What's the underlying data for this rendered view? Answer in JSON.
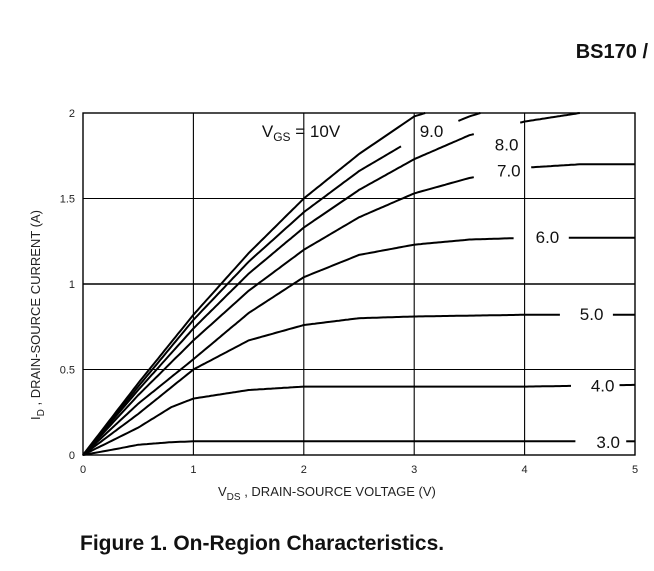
{
  "header": {
    "part_number": "BS170 /"
  },
  "caption": "Figure 1. On-Region Characteristics.",
  "chart_data": {
    "type": "line",
    "xlabel_main": "V",
    "xlabel_sub": "DS",
    "xlabel_rest": " , DRAIN-SOURCE VOLTAGE (V)",
    "ylabel_main": "I",
    "ylabel_sub": "D",
    "ylabel_rest": " , DRAIN-SOURCE CURRENT (A)",
    "xlim": [
      0,
      5
    ],
    "ylim": [
      0,
      2
    ],
    "xticks": [
      0,
      1,
      2,
      3,
      4,
      5
    ],
    "xtick_labels": [
      "0",
      "1",
      "2",
      "3",
      "4",
      "5"
    ],
    "yticks": [
      0,
      0.5,
      1,
      1.5,
      2
    ],
    "ytick_labels": [
      "0",
      "0.5",
      "1",
      "1.5",
      "2"
    ],
    "grid": true,
    "series": [
      {
        "name": "10V",
        "points": [
          [
            0,
            0
          ],
          [
            0.5,
            0.42
          ],
          [
            1,
            0.82
          ],
          [
            1.5,
            1.18
          ],
          [
            2,
            1.5
          ],
          [
            2.5,
            1.76
          ],
          [
            3,
            1.98
          ],
          [
            3.1,
            2.0
          ]
        ],
        "label_main": "V",
        "label_sub": "GS",
        "label_rest": " = 10V"
      },
      {
        "name": "9.0",
        "points": [
          [
            0,
            0
          ],
          [
            0.5,
            0.4
          ],
          [
            1,
            0.79
          ],
          [
            1.5,
            1.13
          ],
          [
            2,
            1.42
          ],
          [
            2.5,
            1.66
          ],
          [
            3,
            1.85
          ],
          [
            3.5,
            1.98
          ],
          [
            3.6,
            2.0
          ]
        ],
        "label": "9.0"
      },
      {
        "name": "8.0",
        "points": [
          [
            0,
            0
          ],
          [
            0.5,
            0.38
          ],
          [
            1,
            0.74
          ],
          [
            1.5,
            1.06
          ],
          [
            2,
            1.33
          ],
          [
            2.5,
            1.55
          ],
          [
            3,
            1.73
          ],
          [
            3.5,
            1.87
          ],
          [
            4,
            1.95
          ],
          [
            4.5,
            2.0
          ]
        ],
        "label": "8.0"
      },
      {
        "name": "7.0",
        "points": [
          [
            0,
            0
          ],
          [
            0.5,
            0.35
          ],
          [
            1,
            0.67
          ],
          [
            1.5,
            0.96
          ],
          [
            2,
            1.2
          ],
          [
            2.5,
            1.39
          ],
          [
            3,
            1.53
          ],
          [
            3.5,
            1.62
          ],
          [
            4,
            1.68
          ],
          [
            4.5,
            1.7
          ],
          [
            5,
            1.7
          ]
        ],
        "label": "7.0"
      },
      {
        "name": "6.0",
        "points": [
          [
            0,
            0
          ],
          [
            0.5,
            0.3
          ],
          [
            1,
            0.56
          ],
          [
            1.5,
            0.83
          ],
          [
            2,
            1.04
          ],
          [
            2.5,
            1.17
          ],
          [
            3,
            1.23
          ],
          [
            3.5,
            1.26
          ],
          [
            4,
            1.27
          ],
          [
            4.5,
            1.27
          ],
          [
            5,
            1.27
          ]
        ],
        "label": "6.0"
      },
      {
        "name": "5.0",
        "points": [
          [
            0,
            0
          ],
          [
            0.5,
            0.24
          ],
          [
            1,
            0.5
          ],
          [
            1.5,
            0.67
          ],
          [
            2,
            0.76
          ],
          [
            2.5,
            0.8
          ],
          [
            3,
            0.81
          ],
          [
            4,
            0.82
          ],
          [
            5,
            0.82
          ]
        ],
        "label": "5.0"
      },
      {
        "name": "4.0",
        "points": [
          [
            0,
            0
          ],
          [
            0.5,
            0.16
          ],
          [
            0.8,
            0.28
          ],
          [
            1,
            0.33
          ],
          [
            1.5,
            0.38
          ],
          [
            2,
            0.4
          ],
          [
            3,
            0.4
          ],
          [
            4,
            0.4
          ],
          [
            5,
            0.41
          ]
        ],
        "label": "4.0"
      },
      {
        "name": "3.0",
        "points": [
          [
            0,
            0
          ],
          [
            0.3,
            0.035
          ],
          [
            0.5,
            0.06
          ],
          [
            0.8,
            0.075
          ],
          [
            1,
            0.08
          ],
          [
            2,
            0.08
          ],
          [
            3,
            0.08
          ],
          [
            4,
            0.08
          ],
          [
            5,
            0.08
          ]
        ],
        "label": "3.0"
      }
    ]
  }
}
